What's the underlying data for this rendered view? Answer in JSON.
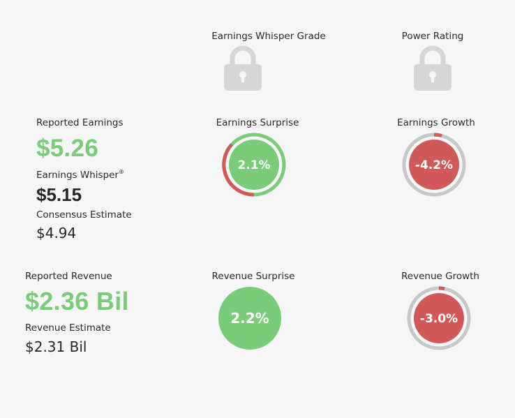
{
  "grades": {
    "whisper_grade_label": "Earnings Whisper Grade",
    "power_rating_label": "Power Rating"
  },
  "earnings": {
    "reported_label": "Reported Earnings",
    "reported_value": "$5.26",
    "whisper_label": "Earnings Whisper",
    "whisper_mark": "®",
    "whisper_value": "$5.15",
    "consensus_label": "Consensus Estimate",
    "consensus_value": "$4.94",
    "surprise_label": "Earnings Surprise",
    "surprise_value": "2.1%",
    "surprise_pct": 2.1,
    "growth_label": "Earnings Growth",
    "growth_value": "-4.2%",
    "growth_pct": -4.2
  },
  "revenue": {
    "reported_label": "Reported Revenue",
    "reported_value": "$2.36 Bil",
    "estimate_label": "Revenue Estimate",
    "estimate_value": "$2.31 Bil",
    "surprise_label": "Revenue Surprise",
    "surprise_value": "2.2%",
    "surprise_pct": 2.2,
    "growth_label": "Revenue Growth",
    "growth_value": "-3.0%",
    "growth_pct": -3.0
  },
  "colors": {
    "positive": "#7acb7a",
    "negative": "#d05a5a",
    "ring_track": "#c8c8c8",
    "lock": "#d6d6d6"
  },
  "icons": {
    "whisper_grade": "lock-icon",
    "power_rating": "lock-icon"
  }
}
